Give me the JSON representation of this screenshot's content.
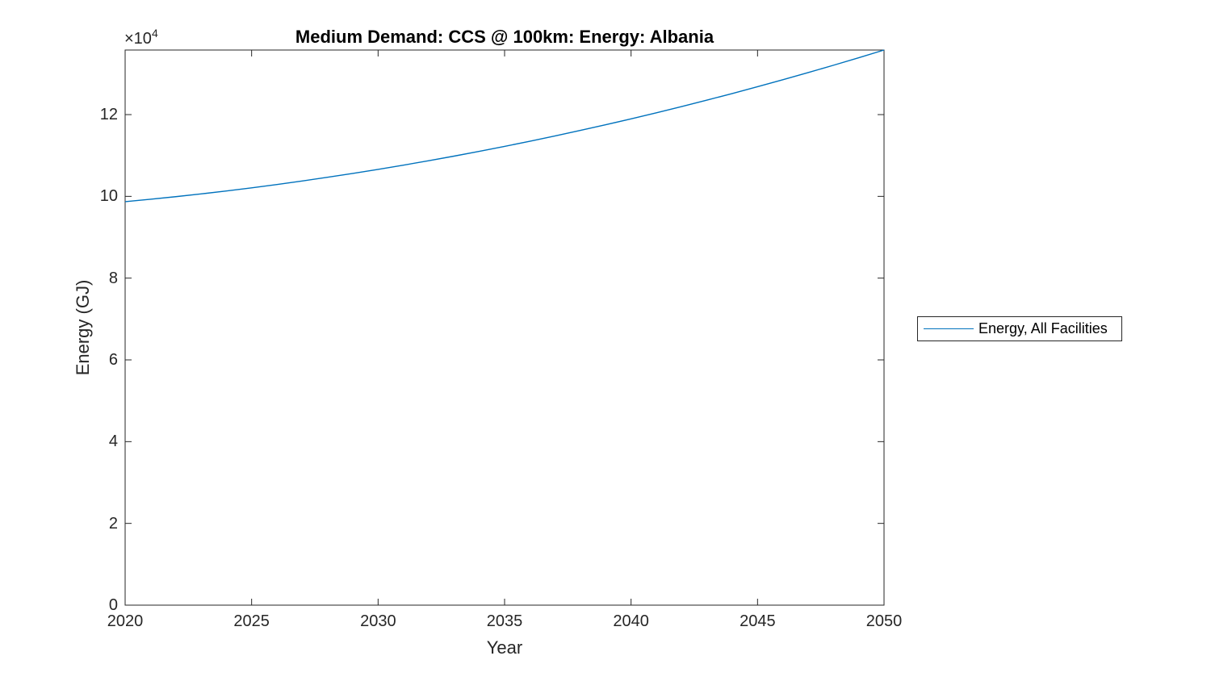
{
  "figure": {
    "title": "Medium Demand: CCS @ 100km: Energy: Albania",
    "xlabel": "Year",
    "ylabel": "Energy (GJ)",
    "y_multiplier_base": "×10",
    "y_multiplier_exp": "4"
  },
  "legend": {
    "entries": [
      {
        "label": "Energy, All Facilities",
        "color": "#0072BD"
      }
    ]
  },
  "colors": {
    "line": "#0072BD",
    "axis": "#262626",
    "tick_text": "#262626",
    "title_text": "#000000",
    "background": "#ffffff"
  },
  "chart_data": {
    "type": "line",
    "title": "Medium Demand: CCS @ 100km: Energy: Albania",
    "xlabel": "Year",
    "ylabel": "Energy (GJ)",
    "y_axis_multiplier": "×10^4",
    "grid": false,
    "legend_position": "outside-right",
    "xlim": [
      2020,
      2050
    ],
    "ylim": [
      0,
      135797
    ],
    "xticks": [
      2020,
      2025,
      2030,
      2035,
      2040,
      2045,
      2050
    ],
    "yticks": [
      0,
      20000,
      40000,
      60000,
      80000,
      100000,
      120000
    ],
    "ytick_labels": [
      "0",
      "2",
      "4",
      "6",
      "8",
      "10",
      "12"
    ],
    "series": [
      {
        "name": "Energy, All Facilities",
        "color": "#0072BD",
        "x": [
          2020,
          2021,
          2022,
          2023,
          2024,
          2025,
          2026,
          2027,
          2028,
          2029,
          2030,
          2031,
          2032,
          2033,
          2034,
          2035,
          2036,
          2037,
          2038,
          2039,
          2040,
          2041,
          2042,
          2043,
          2044,
          2045,
          2046,
          2047,
          2048,
          2049,
          2050
        ],
        "y": [
          98700,
          99289,
          99923,
          100601,
          101324,
          102092,
          102904,
          103761,
          104663,
          105609,
          106600,
          107636,
          108716,
          109841,
          111010,
          112225,
          113483,
          114786,
          116134,
          117528,
          118965,
          120449,
          121977,
          123543,
          125160,
          126823,
          128528,
          130278,
          132074,
          133913,
          135797
        ]
      }
    ]
  }
}
